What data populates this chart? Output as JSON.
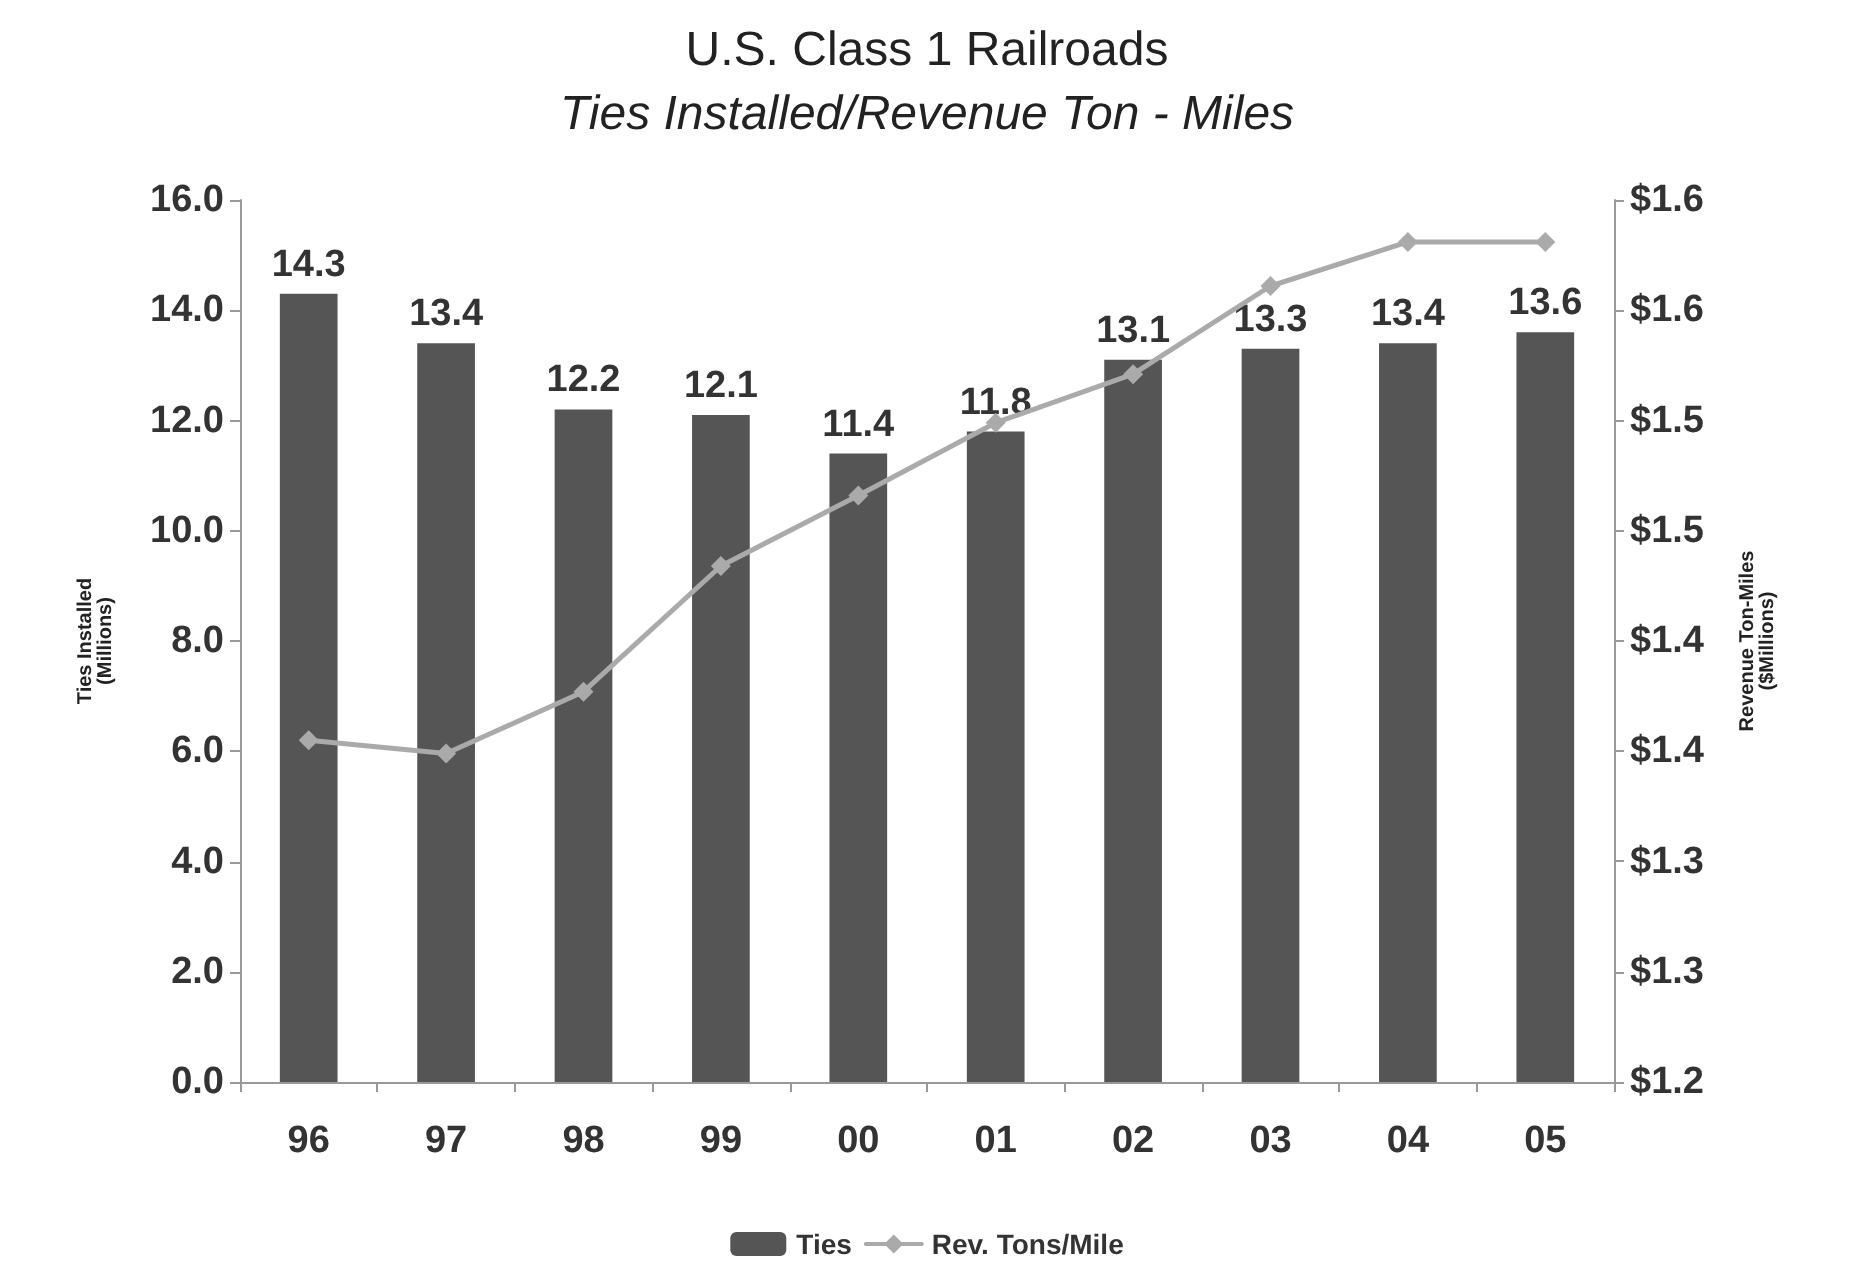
{
  "chart_data": {
    "type": "bar",
    "title": "U.S. Class 1 Railroads",
    "subtitle": "Ties Installed/Revenue Ton - Miles",
    "categories": [
      "96",
      "97",
      "98",
      "99",
      "00",
      "01",
      "02",
      "03",
      "04",
      "05"
    ],
    "series": [
      {
        "name": "Ties",
        "color": "#555555",
        "values": [
          14.3,
          13.4,
          12.2,
          12.1,
          11.4,
          11.8,
          13.1,
          13.3,
          13.4,
          13.6
        ],
        "value_labels": [
          "14.3",
          "13.4",
          "12.2",
          "12.1",
          "11.4",
          "11.8",
          "13.1",
          "13.3",
          "13.4",
          "13.6"
        ]
      },
      {
        "name": "Rev. Tons/Mile",
        "type": "line",
        "axis": "y2",
        "color": "#aaaaaa",
        "marker": "diamond",
        "values": [
          1.355,
          1.349,
          1.377,
          1.434,
          1.466,
          1.499,
          1.521,
          1.561,
          1.581,
          1.581
        ]
      }
    ],
    "ylabel": "Ties Installed\n(Millions)",
    "y2label": "Revenue Ton-Miles\n($Millions)",
    "ylim": [
      0,
      16
    ],
    "yticks": [
      {
        "value": 0,
        "label": "0.0"
      },
      {
        "value": 2,
        "label": "2.0"
      },
      {
        "value": 4,
        "label": "4.0"
      },
      {
        "value": 6,
        "label": "6.0"
      },
      {
        "value": 8,
        "label": "8.0"
      },
      {
        "value": 10,
        "label": "10.0"
      },
      {
        "value": 12,
        "label": "12.0"
      },
      {
        "value": 14,
        "label": "14.0"
      },
      {
        "value": 16,
        "label": "16.0"
      }
    ],
    "y2lim": [
      1.2,
      1.6
    ],
    "y2ticks": [
      {
        "value": 1.2,
        "label": "$1.2"
      },
      {
        "value": 1.25,
        "label": "$1.3"
      },
      {
        "value": 1.3,
        "label": "$1.3"
      },
      {
        "value": 1.35,
        "label": "$1.4"
      },
      {
        "value": 1.4,
        "label": "$1.4"
      },
      {
        "value": 1.45,
        "label": "$1.5"
      },
      {
        "value": 1.5,
        "label": "$1.5"
      },
      {
        "value": 1.55,
        "label": "$1.6"
      },
      {
        "value": 1.6,
        "label": "$1.6"
      }
    ],
    "grid": false,
    "legend": "bottom"
  }
}
